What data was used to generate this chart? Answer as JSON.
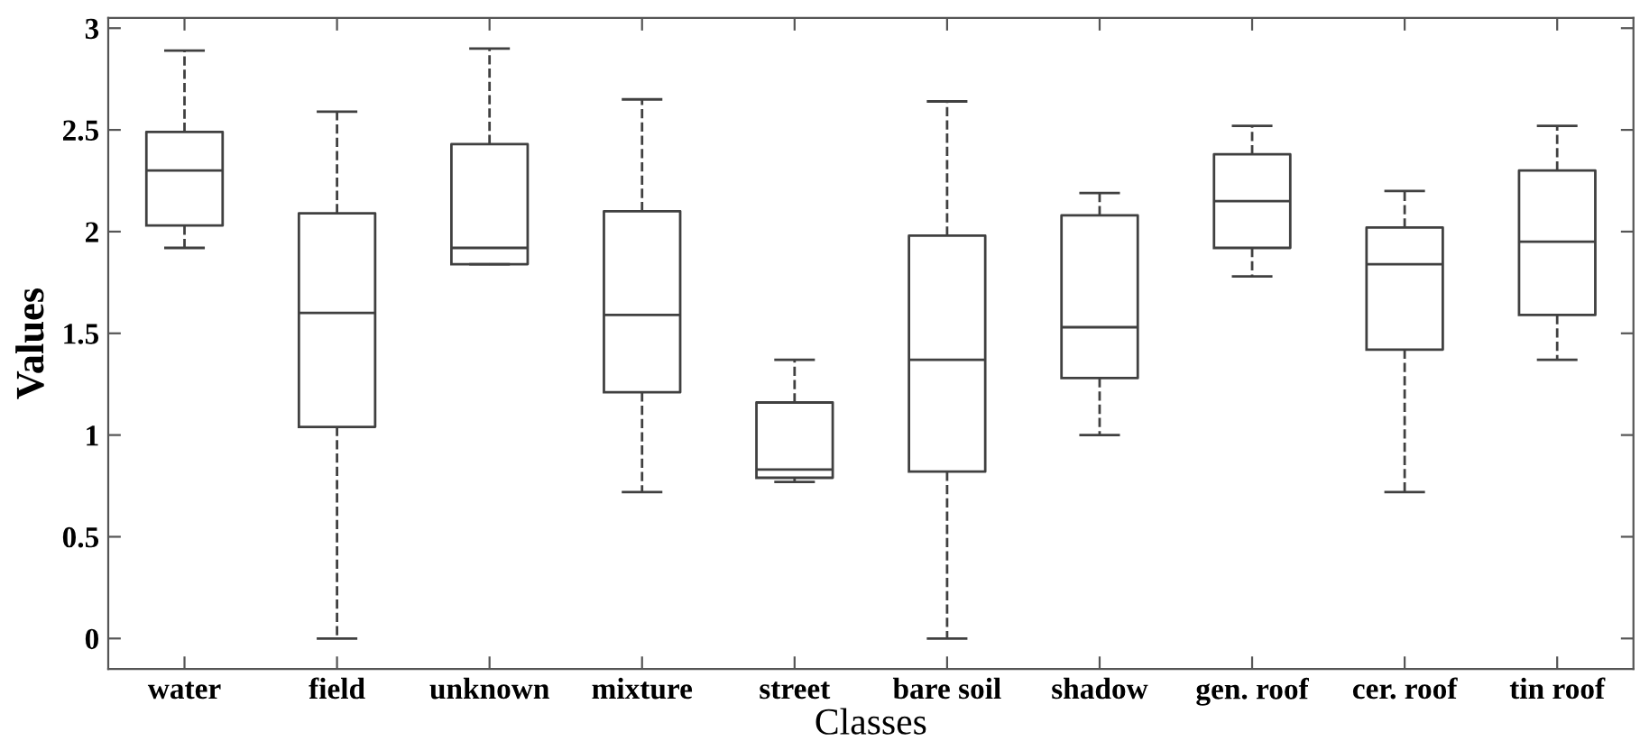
{
  "chart_data": {
    "type": "box",
    "xlabel": "Classes",
    "ylabel": "Values",
    "categories": [
      "water",
      "field",
      "unknown",
      "mixture",
      "street",
      "bare soil",
      "shadow",
      "gen. roof",
      "cer. roof",
      "tin roof"
    ],
    "boxes": [
      {
        "low": 1.92,
        "q1": 2.03,
        "median": 2.3,
        "q3": 2.49,
        "high": 2.89
      },
      {
        "low": 0,
        "q1": 1.04,
        "median": 1.6,
        "q3": 2.09,
        "high": 2.59
      },
      {
        "low": 1.84,
        "q1": 1.84,
        "median": 1.92,
        "q3": 2.43,
        "high": 2.9
      },
      {
        "low": 0.72,
        "q1": 1.21,
        "median": 1.59,
        "q3": 2.1,
        "high": 2.65
      },
      {
        "low": 0.77,
        "q1": 0.79,
        "median": 0.83,
        "q3": 1.16,
        "high": 1.37
      },
      {
        "low": 0,
        "q1": 0.82,
        "median": 1.37,
        "q3": 1.98,
        "high": 2.64
      },
      {
        "low": 1.0,
        "q1": 1.28,
        "median": 1.53,
        "q3": 2.08,
        "high": 2.19
      },
      {
        "low": 1.78,
        "q1": 1.92,
        "median": 2.15,
        "q3": 2.38,
        "high": 2.52
      },
      {
        "low": 0.72,
        "q1": 1.42,
        "median": 1.84,
        "q3": 2.02,
        "high": 2.2
      },
      {
        "low": 1.37,
        "q1": 1.59,
        "median": 1.95,
        "q3": 2.3,
        "high": 2.52
      }
    ],
    "color": "#404040",
    "ylim": [
      -0.15,
      3.05
    ],
    "yticks": [
      0,
      {
        "value": 0.5,
        "label": "0.5"
      },
      1,
      {
        "value": 1.5,
        "label": "1.5"
      },
      2,
      {
        "value": 2.5,
        "label": "2.5"
      },
      3
    ],
    "grid": false,
    "line_style": "dashed"
  }
}
